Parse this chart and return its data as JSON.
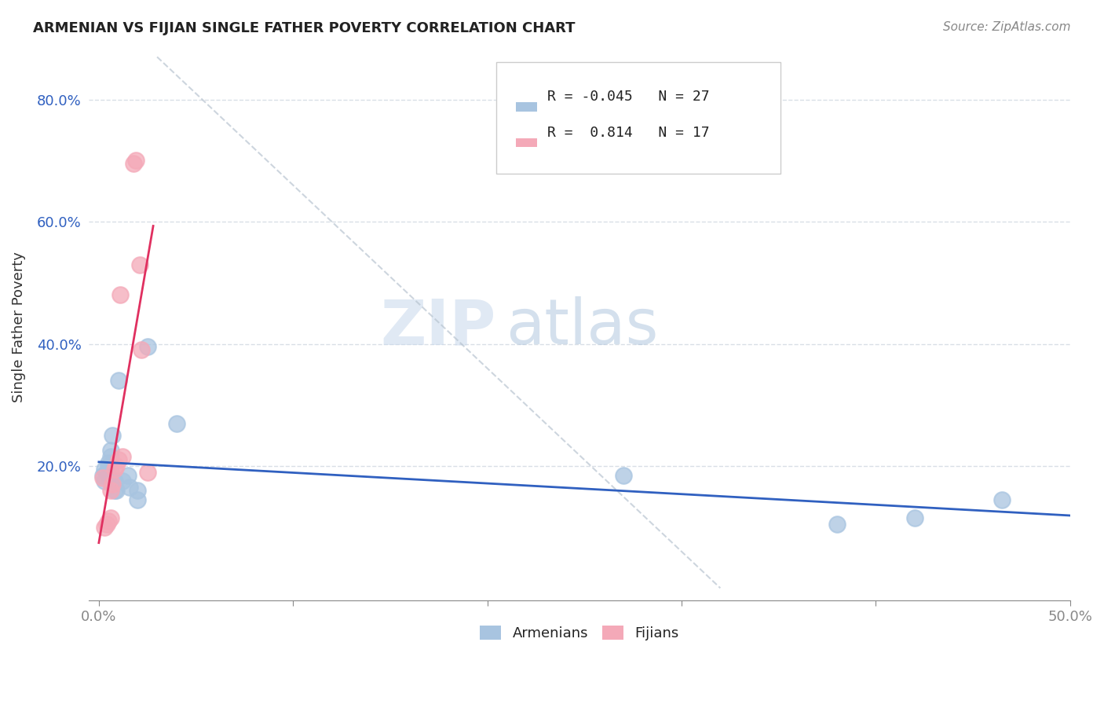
{
  "title": "ARMENIAN VS FIJIAN SINGLE FATHER POVERTY CORRELATION CHART",
  "source": "Source: ZipAtlas.com",
  "xlabel": "",
  "ylabel": "Single Father Poverty",
  "xlim": [
    0.0,
    0.5
  ],
  "ylim": [
    0.0,
    0.875
  ],
  "armenian_R": -0.045,
  "armenian_N": 27,
  "fijian_R": 0.814,
  "fijian_N": 17,
  "armenian_color": "#a8c4e0",
  "fijian_color": "#f4a9b8",
  "armenian_line_color": "#3060c0",
  "fijian_line_color": "#e03060",
  "watermark_zip": "ZIP",
  "watermark_atlas": "atlas",
  "armenians_x": [
    0.002,
    0.003,
    0.003,
    0.004,
    0.005,
    0.005,
    0.005,
    0.006,
    0.006,
    0.006,
    0.007,
    0.007,
    0.008,
    0.008,
    0.009,
    0.01,
    0.012,
    0.015,
    0.016,
    0.02,
    0.02,
    0.025,
    0.04,
    0.27,
    0.38,
    0.42,
    0.465
  ],
  "armenians_y": [
    0.185,
    0.195,
    0.175,
    0.19,
    0.2,
    0.205,
    0.185,
    0.215,
    0.225,
    0.19,
    0.25,
    0.17,
    0.175,
    0.16,
    0.16,
    0.34,
    0.175,
    0.185,
    0.165,
    0.145,
    0.16,
    0.395,
    0.27,
    0.185,
    0.105,
    0.115,
    0.145
  ],
  "fijians_x": [
    0.002,
    0.003,
    0.004,
    0.005,
    0.006,
    0.006,
    0.007,
    0.008,
    0.009,
    0.01,
    0.011,
    0.012,
    0.018,
    0.019,
    0.021,
    0.022,
    0.025
  ],
  "fijians_y": [
    0.18,
    0.1,
    0.105,
    0.11,
    0.115,
    0.16,
    0.17,
    0.195,
    0.2,
    0.21,
    0.48,
    0.215,
    0.695,
    0.7,
    0.53,
    0.39,
    0.19
  ]
}
